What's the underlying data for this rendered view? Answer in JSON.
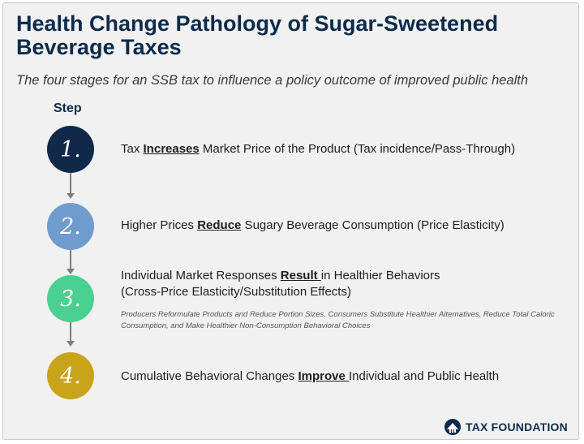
{
  "title": "Health Change Pathology of Sugar-Sweetened Beverage Taxes",
  "subtitle": "The four stages for an SSB tax to influence a policy outcome of improved public health",
  "step_heading": "Step",
  "steps": [
    {
      "number": "1.",
      "color": "#10294a",
      "text_before": "Tax ",
      "keyword": "Increases",
      "text_after": " Market Price of the Product (Tax incidence/Pass-Through)"
    },
    {
      "number": "2.",
      "color": "#6f9ccf",
      "text_before": "Higher Prices ",
      "keyword": "Reduce",
      "text_after": " Sugary Beverage Consumption (Price Elasticity)"
    },
    {
      "number": "3.",
      "color": "#4ad090",
      "text_before": "Individual Market Responses ",
      "keyword": "Result ",
      "text_after": "in Healthier Behaviors",
      "text_line2": "(Cross-Price Elasticity/Substitution Effects)",
      "note": "Producers Reformulate Products and Reduce Portion Sizes, Consumers Substitute Healthier Alternatives, Reduce Total Caloric Consumption, and Make Healthier Non-Consumption Behavioral Choices"
    },
    {
      "number": "4.",
      "color": "#c9a319",
      "text_before": "Cumulative Behavioral Changes ",
      "keyword": "Improve ",
      "text_after": "Individual and Public Health"
    }
  ],
  "logo": {
    "text": "TAX FOUNDATION",
    "icon": "tax-foundation-logo-icon",
    "color": "#0c2b4a"
  }
}
